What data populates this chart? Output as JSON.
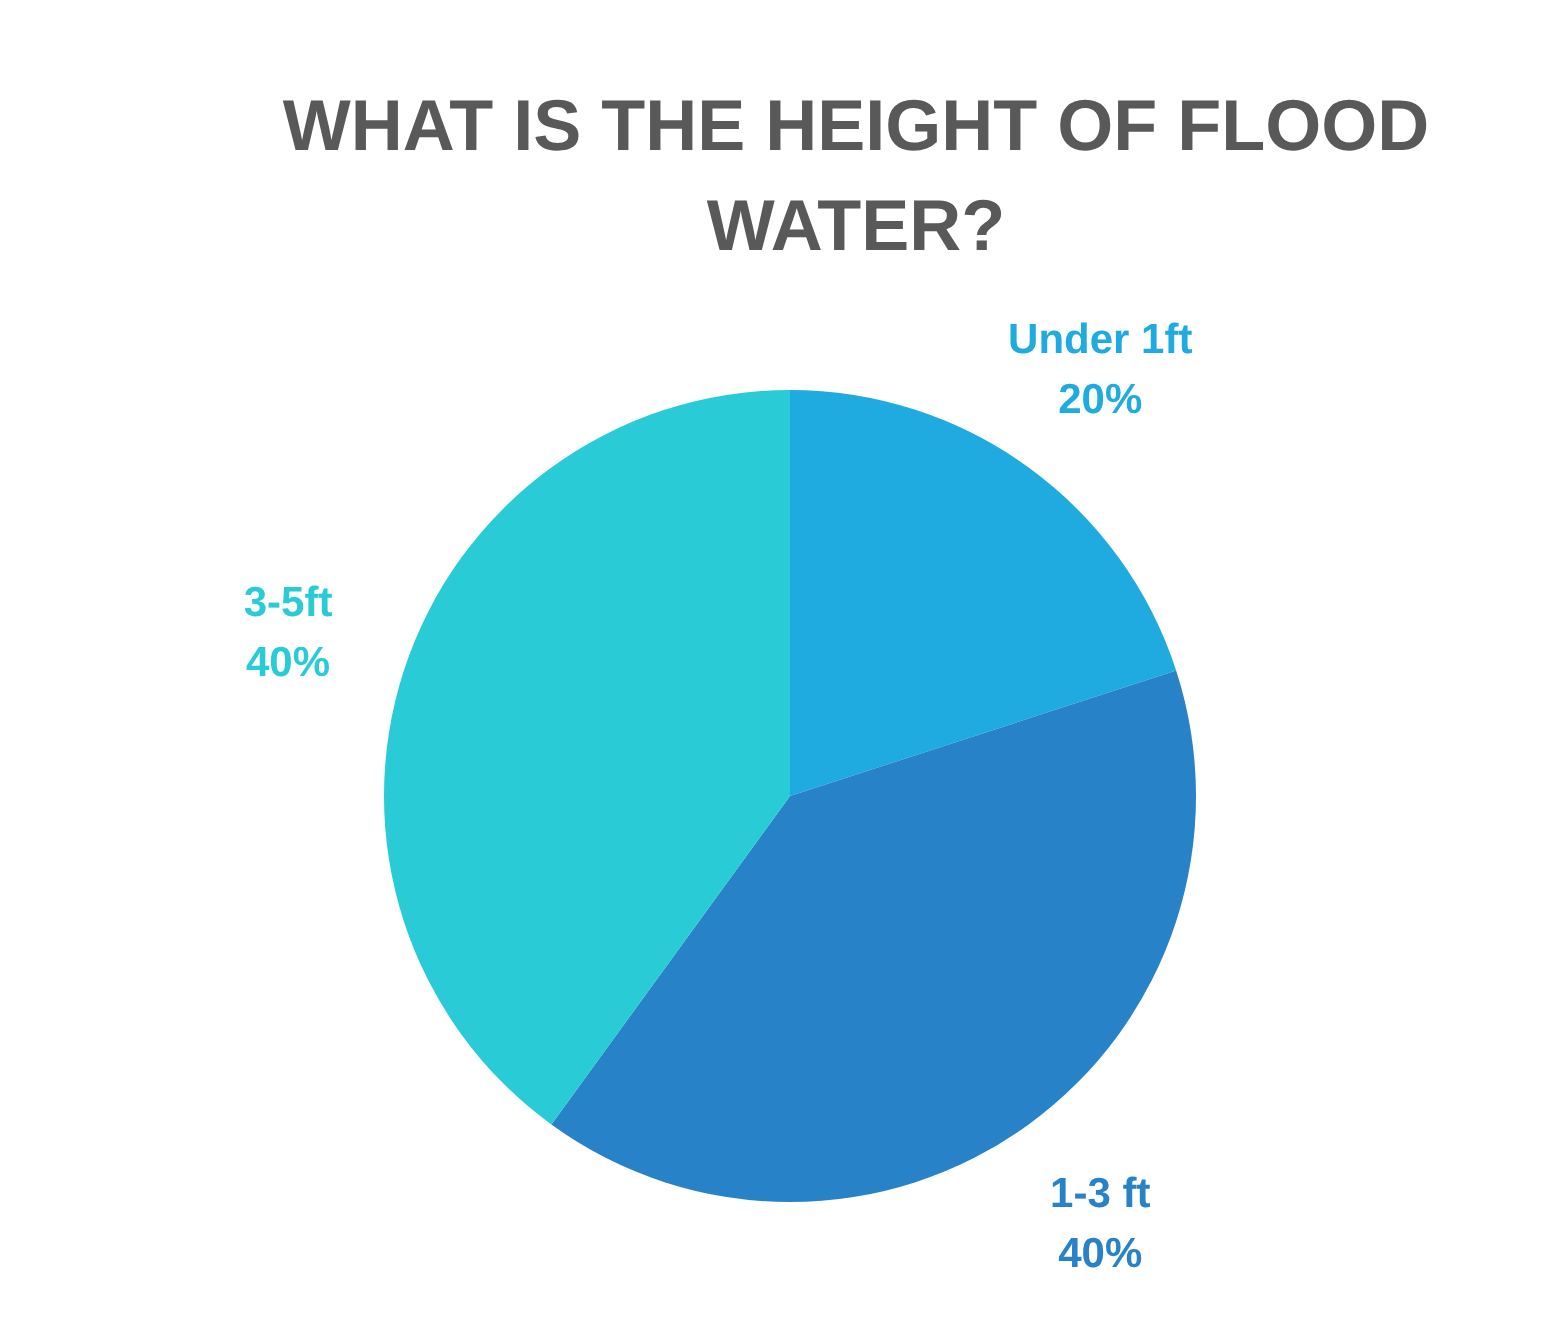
{
  "chart_data": {
    "type": "pie",
    "title": "WHAT IS THE HEIGHT OF FLOOD WATER?",
    "categories": [
      "Under 1ft",
      "1-3 ft",
      "3-5ft"
    ],
    "values": [
      20,
      40,
      40
    ],
    "value_labels": [
      "20%",
      "40%",
      "40%"
    ],
    "colors": [
      "#1fabe0",
      "#2882c8",
      "#29cbd6"
    ],
    "legend": false
  }
}
